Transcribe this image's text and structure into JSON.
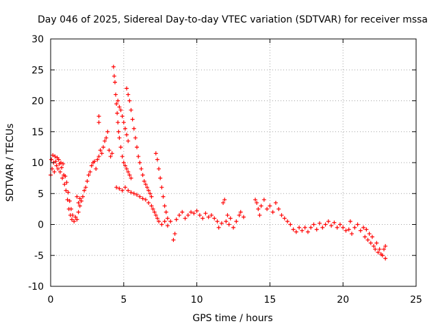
{
  "chart_data": {
    "type": "scatter",
    "title": "Day 046 of 2025, Sidereal Day-to-day VTEC variation (SDTVAR) for receiver mssa",
    "xlabel": "GPS time / hours",
    "ylabel": "SDTVAR / TECUs",
    "xlim": [
      0,
      25
    ],
    "ylim": [
      -10,
      30
    ],
    "xticks": [
      "0",
      "5",
      "10",
      "15",
      "20",
      "25"
    ],
    "yticks": [
      "-10",
      "-5",
      "0",
      "5",
      "10",
      "15",
      "20",
      "25",
      "30"
    ],
    "grid": true,
    "marker": "+",
    "series_color": "#ff0000",
    "series": [
      {
        "name": "mssa",
        "points": [
          [
            0.0,
            8.0
          ],
          [
            0.05,
            10.5
          ],
          [
            0.1,
            9.0
          ],
          [
            0.15,
            11.2
          ],
          [
            0.2,
            10.0
          ],
          [
            0.25,
            8.5
          ],
          [
            0.3,
            11.0
          ],
          [
            0.35,
            10.2
          ],
          [
            0.4,
            9.5
          ],
          [
            0.45,
            10.8
          ],
          [
            0.5,
            9.0
          ],
          [
            0.55,
            10.5
          ],
          [
            0.6,
            9.8
          ],
          [
            0.65,
            8.5
          ],
          [
            0.7,
            10.0
          ],
          [
            0.75,
            9.2
          ],
          [
            0.8,
            7.5
          ],
          [
            0.85,
            9.8
          ],
          [
            0.9,
            8.0
          ],
          [
            0.95,
            6.5
          ],
          [
            1.0,
            7.8
          ],
          [
            1.05,
            5.5
          ],
          [
            1.1,
            6.8
          ],
          [
            1.15,
            4.0
          ],
          [
            1.2,
            5.2
          ],
          [
            1.25,
            2.5
          ],
          [
            1.3,
            3.8
          ],
          [
            1.35,
            1.5
          ],
          [
            1.4,
            2.5
          ],
          [
            1.45,
            0.8
          ],
          [
            1.5,
            1.5
          ],
          [
            1.6,
            0.5
          ],
          [
            1.7,
            1.2
          ],
          [
            1.8,
            0.8
          ],
          [
            1.9,
            2.0
          ],
          [
            2.0,
            3.0
          ],
          [
            1.8,
            4.5
          ],
          [
            1.9,
            3.5
          ],
          [
            2.0,
            4.2
          ],
          [
            2.1,
            3.8
          ],
          [
            2.2,
            4.5
          ],
          [
            2.3,
            5.5
          ],
          [
            2.4,
            6.0
          ],
          [
            2.5,
            7.0
          ],
          [
            2.6,
            8.0
          ],
          [
            2.7,
            8.5
          ],
          [
            2.8,
            9.5
          ],
          [
            2.9,
            10.0
          ],
          [
            3.0,
            10.2
          ],
          [
            3.1,
            9.0
          ],
          [
            3.2,
            10.5
          ],
          [
            3.3,
            11.0
          ],
          [
            3.4,
            12.0
          ],
          [
            3.5,
            11.5
          ],
          [
            3.6,
            12.5
          ],
          [
            3.7,
            13.5
          ],
          [
            3.8,
            14.0
          ],
          [
            3.9,
            15.0
          ],
          [
            3.3,
            16.5
          ],
          [
            3.3,
            17.5
          ],
          [
            4.0,
            12.0
          ],
          [
            4.1,
            11.0
          ],
          [
            4.2,
            11.5
          ],
          [
            4.3,
            25.5
          ],
          [
            4.35,
            24.0
          ],
          [
            4.4,
            23.0
          ],
          [
            4.45,
            21.0
          ],
          [
            4.5,
            19.5
          ],
          [
            4.55,
            18.0
          ],
          [
            4.6,
            16.5
          ],
          [
            4.65,
            15.0
          ],
          [
            4.7,
            14.0
          ],
          [
            4.8,
            12.5
          ],
          [
            4.9,
            11.0
          ],
          [
            5.0,
            10.0
          ],
          [
            5.1,
            9.5
          ],
          [
            5.2,
            9.0
          ],
          [
            5.3,
            8.5
          ],
          [
            5.4,
            8.0
          ],
          [
            5.5,
            7.5
          ],
          [
            4.6,
            20.0
          ],
          [
            4.7,
            19.0
          ],
          [
            4.8,
            18.5
          ],
          [
            4.9,
            17.5
          ],
          [
            5.0,
            16.5
          ],
          [
            5.1,
            15.5
          ],
          [
            5.2,
            14.5
          ],
          [
            5.3,
            13.5
          ],
          [
            5.2,
            22.0
          ],
          [
            5.3,
            21.0
          ],
          [
            5.4,
            20.0
          ],
          [
            5.5,
            18.5
          ],
          [
            5.6,
            17.0
          ],
          [
            5.7,
            15.5
          ],
          [
            5.8,
            14.0
          ],
          [
            5.9,
            12.5
          ],
          [
            6.0,
            11.0
          ],
          [
            6.1,
            10.0
          ],
          [
            6.2,
            9.0
          ],
          [
            6.3,
            8.0
          ],
          [
            6.4,
            7.0
          ],
          [
            6.5,
            6.5
          ],
          [
            6.6,
            6.0
          ],
          [
            6.7,
            5.5
          ],
          [
            6.8,
            5.0
          ],
          [
            6.9,
            4.5
          ],
          [
            4.5,
            6.0
          ],
          [
            4.7,
            5.8
          ],
          [
            4.9,
            5.5
          ],
          [
            5.1,
            6.0
          ],
          [
            5.3,
            5.5
          ],
          [
            5.5,
            5.2
          ],
          [
            5.7,
            5.0
          ],
          [
            5.9,
            4.8
          ],
          [
            6.1,
            4.5
          ],
          [
            6.3,
            4.2
          ],
          [
            6.5,
            4.0
          ],
          [
            6.7,
            3.5
          ],
          [
            6.9,
            3.0
          ],
          [
            7.0,
            2.5
          ],
          [
            7.1,
            2.0
          ],
          [
            7.2,
            1.5
          ],
          [
            7.3,
            1.0
          ],
          [
            7.4,
            0.5
          ],
          [
            7.2,
            11.5
          ],
          [
            7.3,
            10.5
          ],
          [
            7.4,
            9.0
          ],
          [
            7.5,
            7.5
          ],
          [
            7.6,
            6.0
          ],
          [
            7.7,
            4.5
          ],
          [
            7.8,
            3.0
          ],
          [
            7.9,
            2.0
          ],
          [
            8.0,
            1.0
          ],
          [
            7.6,
            0.0
          ],
          [
            7.8,
            0.5
          ],
          [
            8.0,
            -0.2
          ],
          [
            8.2,
            0.5
          ],
          [
            8.4,
            -2.5
          ],
          [
            8.5,
            -1.5
          ],
          [
            8.6,
            0.8
          ],
          [
            8.8,
            1.5
          ],
          [
            9.0,
            2.0
          ],
          [
            9.2,
            1.0
          ],
          [
            9.4,
            1.5
          ],
          [
            9.6,
            2.0
          ],
          [
            9.8,
            1.8
          ],
          [
            10.0,
            2.2
          ],
          [
            10.2,
            1.5
          ],
          [
            10.4,
            1.0
          ],
          [
            10.6,
            1.8
          ],
          [
            10.8,
            1.2
          ],
          [
            11.0,
            1.5
          ],
          [
            11.2,
            1.0
          ],
          [
            11.4,
            0.5
          ],
          [
            11.5,
            -0.5
          ],
          [
            11.7,
            0.2
          ],
          [
            11.8,
            3.5
          ],
          [
            11.9,
            4.0
          ],
          [
            12.0,
            0.5
          ],
          [
            12.1,
            1.5
          ],
          [
            12.2,
            0.0
          ],
          [
            12.3,
            1.0
          ],
          [
            12.5,
            -0.5
          ],
          [
            12.7,
            0.5
          ],
          [
            12.9,
            1.5
          ],
          [
            13.0,
            2.0
          ],
          [
            13.2,
            1.2
          ],
          [
            14.0,
            4.0
          ],
          [
            14.1,
            3.5
          ],
          [
            14.2,
            2.5
          ],
          [
            14.3,
            1.5
          ],
          [
            14.4,
            3.0
          ],
          [
            14.6,
            4.0
          ],
          [
            14.8,
            2.5
          ],
          [
            15.0,
            3.0
          ],
          [
            15.2,
            2.0
          ],
          [
            15.4,
            3.5
          ],
          [
            15.6,
            2.5
          ],
          [
            15.8,
            1.5
          ],
          [
            16.0,
            1.0
          ],
          [
            16.2,
            0.5
          ],
          [
            16.4,
            0.0
          ],
          [
            16.6,
            -0.8
          ],
          [
            16.8,
            -1.2
          ],
          [
            17.0,
            -0.5
          ],
          [
            17.2,
            -1.0
          ],
          [
            17.4,
            -0.5
          ],
          [
            17.6,
            -1.2
          ],
          [
            17.8,
            -0.5
          ],
          [
            18.0,
            0.0
          ],
          [
            18.2,
            -0.8
          ],
          [
            18.4,
            0.2
          ],
          [
            18.6,
            -0.5
          ],
          [
            18.8,
            0.0
          ],
          [
            19.0,
            0.5
          ],
          [
            19.2,
            -0.2
          ],
          [
            19.4,
            0.3
          ],
          [
            19.6,
            -0.5
          ],
          [
            19.8,
            0.0
          ],
          [
            20.0,
            -0.5
          ],
          [
            20.2,
            -1.0
          ],
          [
            20.4,
            -0.8
          ],
          [
            20.5,
            0.5
          ],
          [
            20.6,
            -1.5
          ],
          [
            20.8,
            -0.5
          ],
          [
            21.0,
            0.0
          ],
          [
            21.2,
            -1.0
          ],
          [
            21.4,
            -0.5
          ],
          [
            21.5,
            -2.0
          ],
          [
            21.6,
            -0.8
          ],
          [
            21.7,
            -2.5
          ],
          [
            21.8,
            -1.5
          ],
          [
            21.9,
            -3.0
          ],
          [
            22.0,
            -2.0
          ],
          [
            22.1,
            -3.5
          ],
          [
            22.2,
            -4.0
          ],
          [
            22.3,
            -3.0
          ],
          [
            22.4,
            -4.5
          ],
          [
            22.5,
            -4.0
          ],
          [
            22.6,
            -4.8
          ],
          [
            22.7,
            -5.0
          ],
          [
            22.8,
            -4.0
          ],
          [
            22.9,
            -5.5
          ],
          [
            22.9,
            -3.5
          ]
        ]
      }
    ]
  }
}
